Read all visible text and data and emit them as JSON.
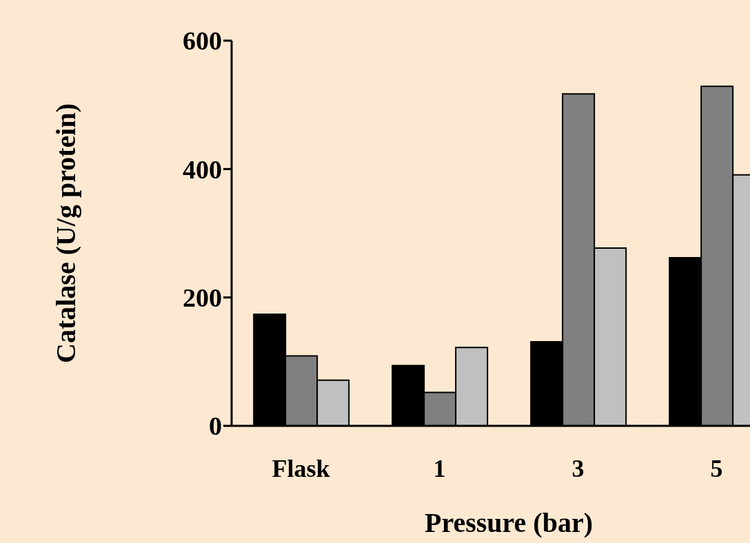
{
  "chart_data": {
    "type": "bar",
    "xlabel": "Pressure (bar)",
    "ylabel": "Catalase (U/g protein)",
    "categories": [
      "Flask",
      "1",
      "3",
      "5"
    ],
    "series": [
      {
        "color": "#000000",
        "values": [
          174,
          94,
          131,
          262
        ]
      },
      {
        "color": "#808080",
        "values": [
          109,
          52,
          517,
          529
        ]
      },
      {
        "color": "#c0c0c0",
        "values": [
          71,
          122,
          277,
          391
        ]
      }
    ],
    "ylim": [
      0,
      600
    ],
    "yticks": [
      0,
      200,
      400,
      600
    ],
    "grid": false
  }
}
